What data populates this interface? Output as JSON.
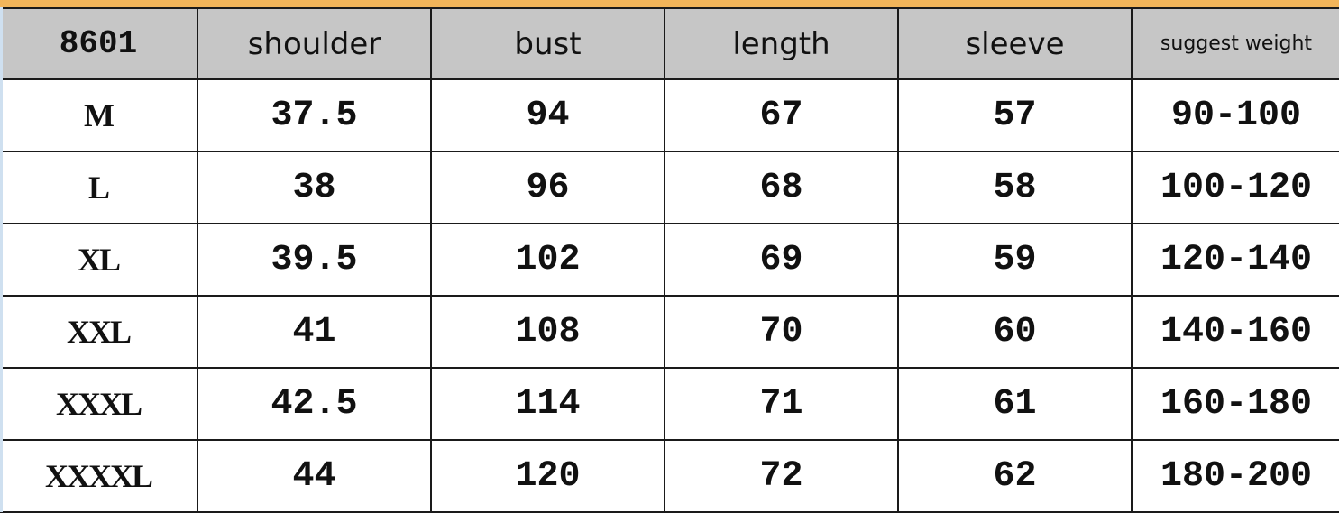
{
  "colors": {
    "accent_top": "#f2b55a",
    "header_bg": "#c6c6c6",
    "border": "#1a1a1a"
  },
  "table": {
    "headers": [
      "8601",
      "shoulder",
      "bust",
      "length",
      "sleeve",
      "suggest weight"
    ],
    "rows": [
      [
        "M",
        "37.5",
        "94",
        "67",
        "57",
        "90-100"
      ],
      [
        "L",
        "38",
        "96",
        "68",
        "58",
        "100-120"
      ],
      [
        "XL",
        "39.5",
        "102",
        "69",
        "59",
        "120-140"
      ],
      [
        "XXL",
        "41",
        "108",
        "70",
        "60",
        "140-160"
      ],
      [
        "XXXL",
        "42.5",
        "114",
        "71",
        "61",
        "160-180"
      ],
      [
        "XXXXL",
        "44",
        "120",
        "72",
        "62",
        "180-200"
      ]
    ]
  }
}
